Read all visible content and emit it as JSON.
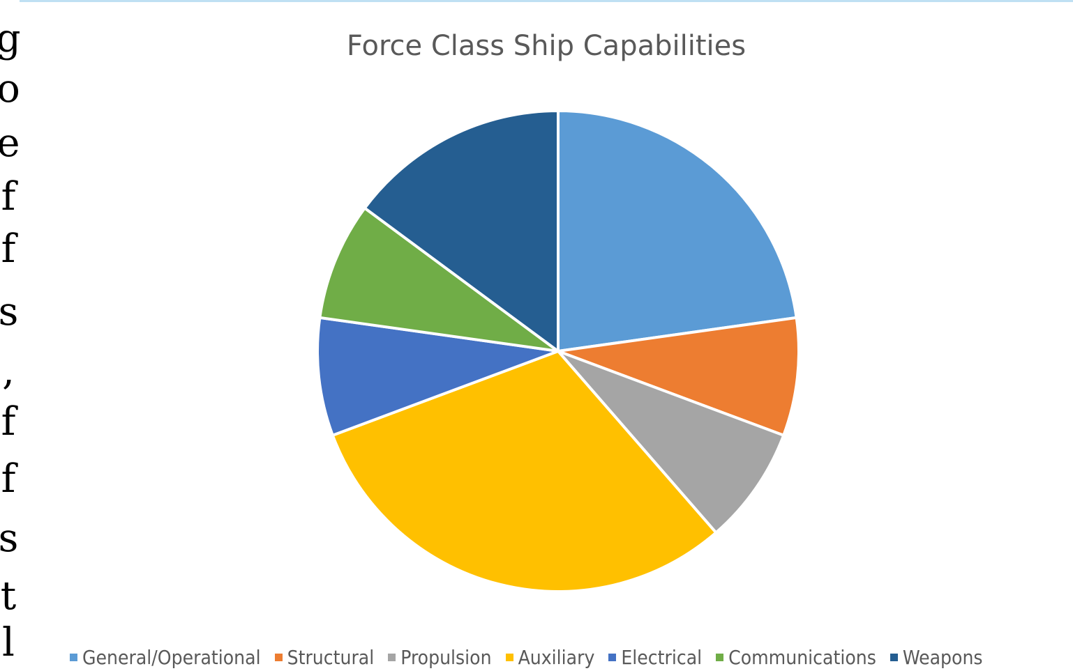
{
  "chart_data": {
    "type": "pie",
    "title": "Force Class Ship Capabilities",
    "categories": [
      "General/Operational",
      "Structural",
      "Propulsion",
      "Auxiliary",
      "Electrical",
      "Communications",
      "Weapons"
    ],
    "values": [
      23,
      8,
      8,
      31,
      8,
      8,
      15
    ],
    "colors": [
      "#5b9bd5",
      "#ed7d31",
      "#a5a5a5",
      "#ffc000",
      "#4472c4",
      "#70ad47",
      "#255e91"
    ],
    "legend_position": "bottom"
  },
  "left_strip_glyphs": [
    "g",
    "o",
    "e",
    "f",
    "f",
    "s",
    ",",
    "f",
    "f",
    "s",
    "t",
    "l"
  ]
}
